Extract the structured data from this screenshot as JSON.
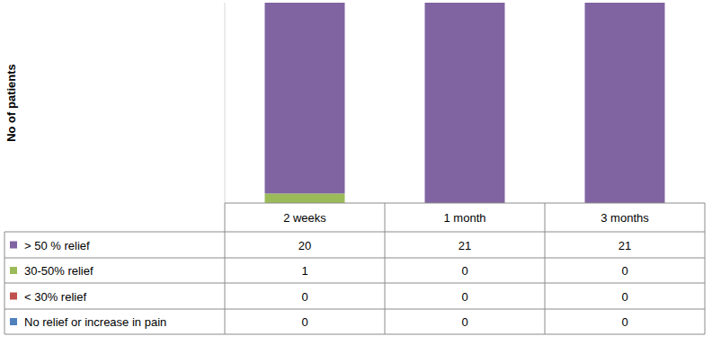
{
  "chart_data": {
    "type": "bar",
    "stacked": true,
    "y_label": "No of patients",
    "categories": [
      "2 weeks",
      "1 month",
      "3 months"
    ],
    "series": [
      {
        "name": "> 50 % relief",
        "color": "#8064a2",
        "values": [
          20,
          21,
          21
        ]
      },
      {
        "name": "30-50% relief",
        "color": "#9bbb59",
        "values": [
          1,
          0,
          0
        ]
      },
      {
        "name": "< 30% relief",
        "color": "#c0504d",
        "values": [
          0,
          0,
          0
        ]
      },
      {
        "name": "No relief or increase in pain",
        "color": "#4f81bd",
        "values": [
          0,
          0,
          0
        ]
      }
    ],
    "ylim": [
      0,
      21
    ],
    "tick_labels": false,
    "grid": false,
    "legend": "bottom",
    "data_labels": false
  }
}
